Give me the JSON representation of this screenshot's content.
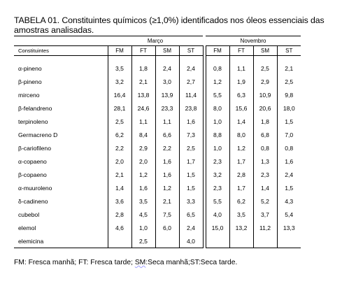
{
  "title": "TABELA 01. Constituintes químicos (≥1,0%) identificados nos óleos essenciais das amostras analisadas.",
  "groups": {
    "march": "Março",
    "november": "Novembro"
  },
  "headers": {
    "name": "Constituintes",
    "march": [
      "FM",
      "FT",
      "SM",
      "ST"
    ],
    "november": [
      "FM",
      "FT",
      "SM",
      "ST"
    ]
  },
  "rows": [
    {
      "name": "α-pineno",
      "march": [
        "3,5",
        "1,8",
        "2,4",
        "2,4"
      ],
      "november": [
        "0,8",
        "1,1",
        "2,5",
        "2,1"
      ]
    },
    {
      "name": "β-pineno",
      "march": [
        "3,2",
        "2,1",
        "3,0",
        "2,7"
      ],
      "november": [
        "1,2",
        "1,9",
        "2,9",
        "2,5"
      ]
    },
    {
      "name": "mirceno",
      "march": [
        "16,4",
        "13,8",
        "13,9",
        "11,4"
      ],
      "november": [
        "5,5",
        "6,3",
        "10,9",
        "9,8"
      ]
    },
    {
      "name": "β-felandreno",
      "march": [
        "28,1",
        "24,6",
        "23,3",
        "23,8"
      ],
      "november": [
        "8,0",
        "15,6",
        "20,6",
        "18,0"
      ]
    },
    {
      "name": "terpinoleno",
      "march": [
        "2,5",
        "1,1",
        "1,1",
        "1,6"
      ],
      "november": [
        "1,0",
        "1,4",
        "1,8",
        "1,5"
      ]
    },
    {
      "name": "Germacreno D",
      "march": [
        "6,2",
        "8,4",
        "6,6",
        "7,3"
      ],
      "november": [
        "8,8",
        "8,0",
        "6,8",
        "7,0"
      ]
    },
    {
      "name": "β-cariofileno",
      "march": [
        "2,2",
        "2,9",
        "2,2",
        "2,5"
      ],
      "november": [
        "1,0",
        "1,2",
        "0,8",
        "0,8"
      ]
    },
    {
      "name": "α-copaeno",
      "march": [
        "2,0",
        "2,0",
        "1,6",
        "1,7"
      ],
      "november": [
        "2,3",
        "1,7",
        "1,3",
        "1,6"
      ]
    },
    {
      "name": "β-copaeno",
      "march": [
        "2,1",
        "1,2",
        "1,6",
        "1,5"
      ],
      "november": [
        "3,2",
        "2,8",
        "2,3",
        "2,4"
      ]
    },
    {
      "name": "α-muuroleno",
      "march": [
        "1,4",
        "1,6",
        "1,2",
        "1,5"
      ],
      "november": [
        "2,3",
        "1,7",
        "1,4",
        "1,5"
      ]
    },
    {
      "name": "δ-cadineno",
      "march": [
        "3,6",
        "3,5",
        "2,1",
        "3,3"
      ],
      "november": [
        "5,5",
        "6,2",
        "5,2",
        "4,3"
      ]
    },
    {
      "name": "cubebol",
      "march": [
        "2,8",
        "4,5",
        "7,5",
        "6,5"
      ],
      "november": [
        "4,0",
        "3,5",
        "3,7",
        "5,4"
      ]
    },
    {
      "name": "elemol",
      "march": [
        "4,6",
        "1,0",
        "6,0",
        "2,4"
      ],
      "november": [
        "15,0",
        "13,2",
        "11,2",
        "13,3"
      ]
    },
    {
      "name": "elemicina",
      "march": [
        "",
        "2,5",
        "",
        "4,0"
      ],
      "november": [
        "",
        "",
        "",
        ""
      ]
    }
  ],
  "footnote": {
    "before": "FM: Fresca manhã; FT: Fresca tarde; ",
    "sm": "SM",
    "after": ":Seca  manhã;ST:Seca tarde."
  }
}
